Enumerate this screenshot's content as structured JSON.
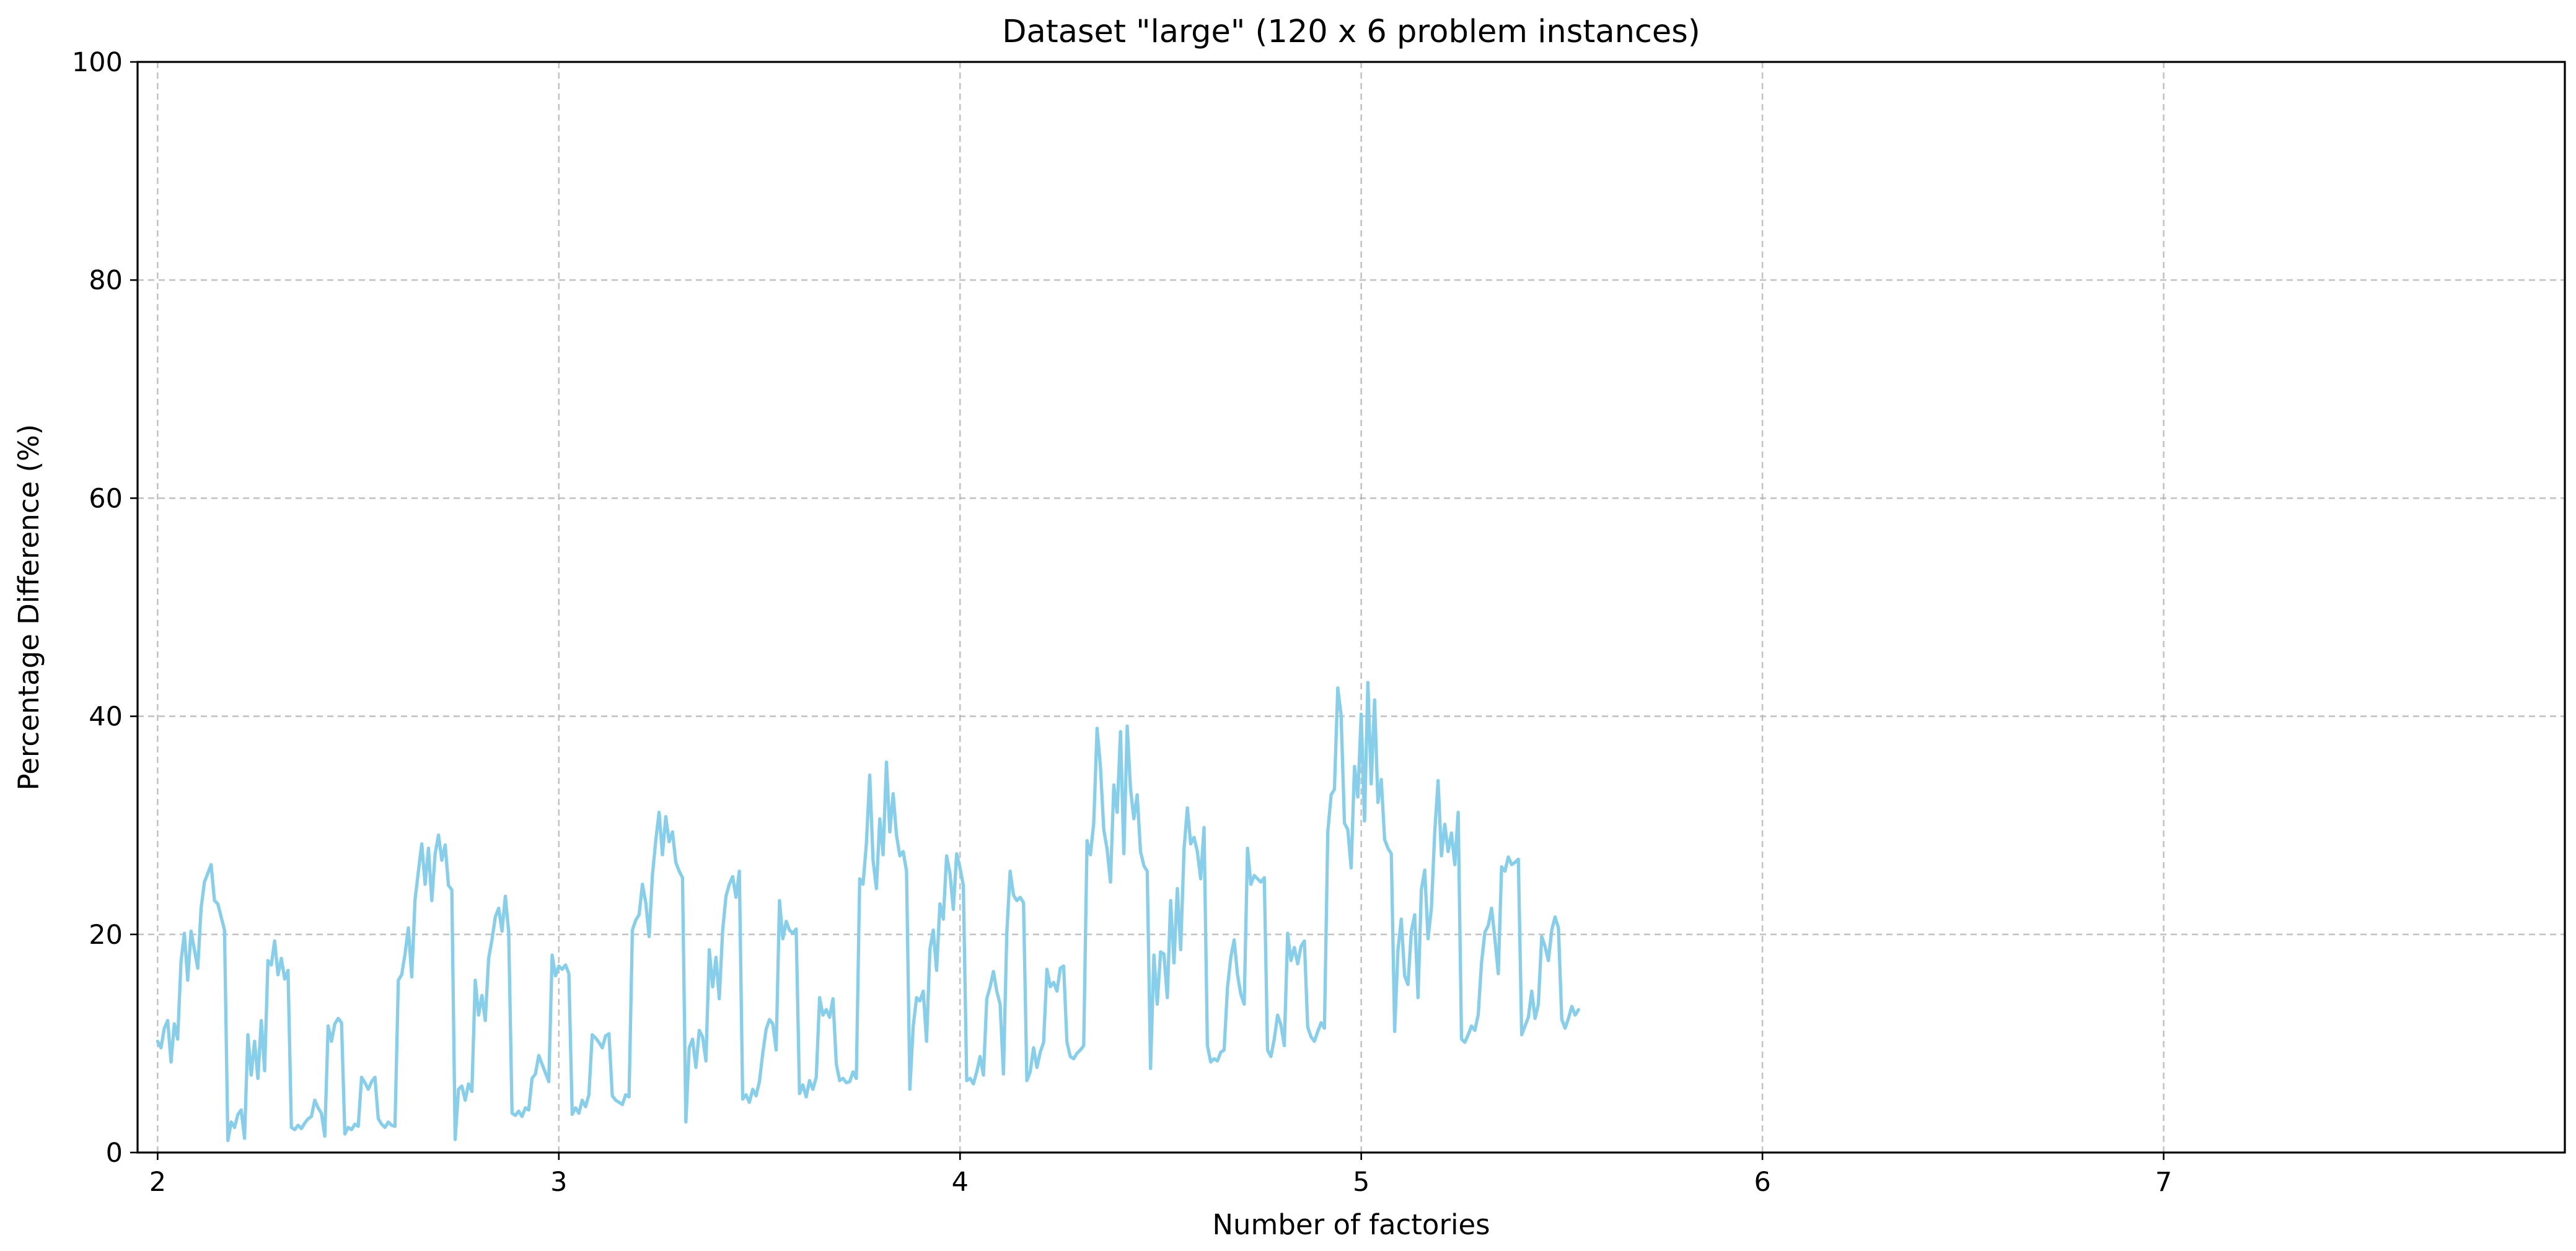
{
  "chart_data": {
    "type": "line",
    "title": "Dataset \"large\" (120 x 6 problem instances)",
    "xlabel": "Number of factories",
    "ylabel": "Percentage Difference (%)",
    "xlim": [
      1.95,
      8.0
    ],
    "ylim": [
      0,
      100
    ],
    "x_ticks": [
      "2",
      "3",
      "4",
      "5",
      "6",
      "7"
    ],
    "y_ticks": [
      "0",
      "20",
      "40",
      "60",
      "80",
      "100"
    ],
    "grid": true,
    "legend": "none",
    "series": [
      {
        "color": "#87ceeb",
        "x_start": 2,
        "x_step": 0.008333,
        "y": [
          10.2,
          9.6,
          11.4,
          12.1,
          8.3,
          11.8,
          10.4,
          17.5,
          20.1,
          15.8,
          20.3,
          18.6,
          16.9,
          22.4,
          24.8,
          25.6,
          26.4,
          23.1,
          22.8,
          21.6,
          20.4,
          1.1,
          2.8,
          2.3,
          3.5,
          3.9,
          1.3,
          10.8,
          7.1,
          10.2,
          6.8,
          12.1,
          7.5,
          17.6,
          17.2,
          19.4,
          16.3,
          17.8,
          15.9,
          16.7,
          2.3,
          2.1,
          2.5,
          2.2,
          2.7,
          3.1,
          3.3,
          4.8,
          4.1,
          3.6,
          1.5,
          11.6,
          10.2,
          11.8,
          12.3,
          11.9,
          1.7,
          2.3,
          2.1,
          2.6,
          2.4,
          6.9,
          6.4,
          5.8,
          6.5,
          6.9,
          3.1,
          2.6,
          2.3,
          2.8,
          2.5,
          2.4,
          15.8,
          16.3,
          18.2,
          20.6,
          16.1,
          23.2,
          25.8,
          28.3,
          24.6,
          27.9,
          23.1,
          27.4,
          29.1,
          26.8,
          28.2,
          24.5,
          24.1,
          1.2,
          5.8,
          6.1,
          4.8,
          6.3,
          5.6,
          15.8,
          12.6,
          14.4,
          12.1,
          17.8,
          19.5,
          21.6,
          22.4,
          20.3,
          23.5,
          20.2,
          3.6,
          3.4,
          3.8,
          3.3,
          4.1,
          3.9,
          6.8,
          7.2,
          8.9,
          8.1,
          7.3,
          6.5,
          18.1,
          16.2,
          17.1,
          16.8,
          17.2,
          16.4,
          3.5,
          4.1,
          3.6,
          4.8,
          4.2,
          5.3,
          10.8,
          10.5,
          10.1,
          9.6,
          10.7,
          10.9,
          5.2,
          4.8,
          4.6,
          4.4,
          5.3,
          5.1,
          20.4,
          21.3,
          21.8,
          24.6,
          22.9,
          19.8,
          25.4,
          28.6,
          31.2,
          27.3,
          30.8,
          28.5,
          29.4,
          26.6,
          25.8,
          25.2,
          2.8,
          9.6,
          10.4,
          7.8,
          11.2,
          10.6,
          8.4,
          18.6,
          15.2,
          17.9,
          14.1,
          20.3,
          23.5,
          24.6,
          25.3,
          23.4,
          25.8,
          4.9,
          5.3,
          4.6,
          5.8,
          5.2,
          6.5,
          9.1,
          11.3,
          12.2,
          11.8,
          9.4,
          23.1,
          19.6,
          21.2,
          20.4,
          20.1,
          20.5,
          5.4,
          6.2,
          5.1,
          6.6,
          5.8,
          6.9,
          14.2,
          12.6,
          13.1,
          12.4,
          14.1,
          8.1,
          6.6,
          6.8,
          6.4,
          6.5,
          7.4,
          6.8,
          25.1,
          24.6,
          28.3,
          34.6,
          26.8,
          24.2,
          30.6,
          27.3,
          35.8,
          29.4,
          32.9,
          29.1,
          27.2,
          27.6,
          25.8,
          5.8,
          11.6,
          14.2,
          13.9,
          14.8,
          10.2,
          18.6,
          20.4,
          16.7,
          22.8,
          21.4,
          27.2,
          25.6,
          22.3,
          27.4,
          26.1,
          24.5,
          6.6,
          6.8,
          6.3,
          7.4,
          8.8,
          7.1,
          14.1,
          15.2,
          16.6,
          14.8,
          13.6,
          7.2,
          20.1,
          25.8,
          23.6,
          23.1,
          23.4,
          22.9,
          6.6,
          7.4,
          9.6,
          7.8,
          9.2,
          10.1,
          16.8,
          15.2,
          15.6,
          14.8,
          16.9,
          17.1,
          10.1,
          8.8,
          8.6,
          9.1,
          9.4,
          9.8,
          28.6,
          27.3,
          30.2,
          38.9,
          35.4,
          29.6,
          27.8,
          24.8,
          33.7,
          31.2,
          38.6,
          27.4,
          39.1,
          33.4,
          30.6,
          32.8,
          27.6,
          26.3,
          25.8,
          7.7,
          18.1,
          13.6,
          18.4,
          18.2,
          14.2,
          23.1,
          17.4,
          24.2,
          18.6,
          27.8,
          31.6,
          28.3,
          28.9,
          27.6,
          25.1,
          29.8,
          9.8,
          8.3,
          8.6,
          8.4,
          9.2,
          9.4,
          15.1,
          17.9,
          19.5,
          16.3,
          14.5,
          13.6,
          27.9,
          24.6,
          25.4,
          25.1,
          24.8,
          25.2,
          9.4,
          8.8,
          10.4,
          12.6,
          11.7,
          9.8,
          20.1,
          17.6,
          18.8,
          17.3,
          18.9,
          19.4,
          11.5,
          10.6,
          10.2,
          11.1,
          11.9,
          11.4,
          29.4,
          32.8,
          33.3,
          42.6,
          40.1,
          30.2,
          29.6,
          26.1,
          35.4,
          32.6,
          40.2,
          30.4,
          43.1,
          33.8,
          41.5,
          32.1,
          34.2,
          28.7,
          27.9,
          27.4,
          11.1,
          18.6,
          21.4,
          16.2,
          15.4,
          20.3,
          21.8,
          14.2,
          24.1,
          25.9,
          19.6,
          22.4,
          29.4,
          34.1,
          27.2,
          30.1,
          27.6,
          29.3,
          26.4,
          31.2,
          10.4,
          10.1,
          10.8,
          11.6,
          11.2,
          12.6,
          17.4,
          20.2,
          20.8,
          22.4,
          19.6,
          16.4,
          26.2,
          25.8,
          27.1,
          26.4,
          26.6,
          26.9,
          10.8,
          11.6,
          12.4,
          14.8,
          12.3,
          13.6,
          19.8,
          18.9,
          17.6,
          20.4,
          21.6,
          20.6,
          12.2,
          11.4,
          12.3,
          13.4,
          12.6,
          13.1
        ]
      }
    ]
  }
}
